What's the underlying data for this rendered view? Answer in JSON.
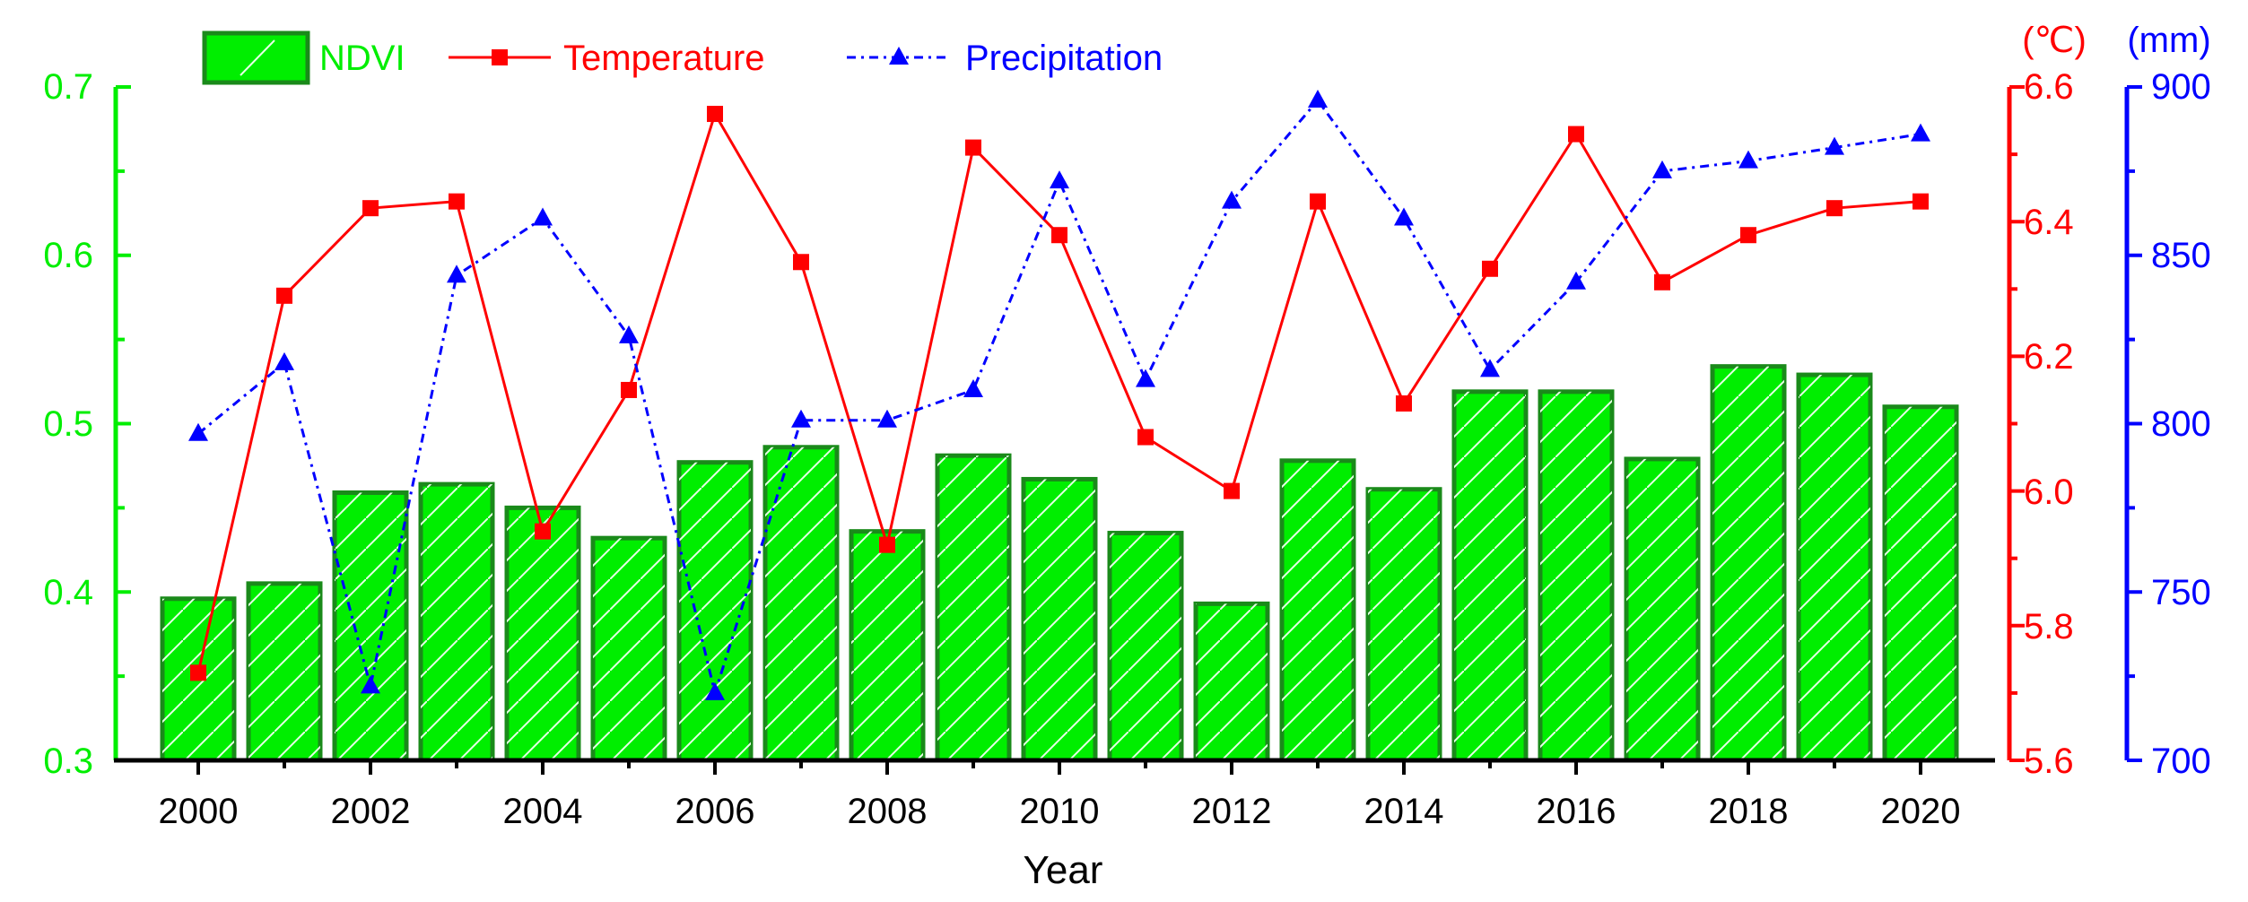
{
  "chart_data": {
    "type": "bar",
    "xlabel": "Year",
    "x": [
      2000,
      2001,
      2002,
      2003,
      2004,
      2005,
      2006,
      2007,
      2008,
      2009,
      2010,
      2011,
      2012,
      2013,
      2014,
      2015,
      2016,
      2017,
      2018,
      2019,
      2020
    ],
    "x_tick_labels": [
      "2000",
      "2002",
      "2004",
      "2006",
      "2008",
      "2010",
      "2012",
      "2014",
      "2016",
      "2018",
      "2020"
    ],
    "series": [
      {
        "name": "NDVI",
        "type": "bar",
        "axis": "left",
        "color": "#00ee00",
        "edge_color": "#1a8a1a",
        "values": [
          0.396,
          0.405,
          0.459,
          0.464,
          0.45,
          0.432,
          0.477,
          0.486,
          0.436,
          0.481,
          0.467,
          0.435,
          0.393,
          0.478,
          0.461,
          0.519,
          0.519,
          0.479,
          0.534,
          0.529,
          0.51
        ]
      },
      {
        "name": "Temperature",
        "type": "line",
        "axis": "right1",
        "color": "#ff0000",
        "marker": "square",
        "values": [
          5.73,
          6.29,
          6.42,
          6.43,
          5.94,
          6.15,
          6.56,
          6.34,
          5.92,
          6.51,
          6.38,
          6.08,
          6.0,
          6.43,
          6.13,
          6.33,
          6.53,
          6.31,
          6.38,
          6.42,
          6.43
        ]
      },
      {
        "name": "Precipitation",
        "type": "line",
        "axis": "right2",
        "color": "#0000ff",
        "marker": "triangle",
        "values": [
          797,
          818,
          722,
          844,
          861,
          826,
          720,
          801,
          801,
          810,
          872,
          813,
          866,
          896,
          861,
          816,
          842,
          875,
          878,
          882,
          886
        ]
      }
    ],
    "axes": {
      "left": {
        "ylim": [
          0.3,
          0.7
        ],
        "ticks": [
          "0.3",
          "0.4",
          "0.5",
          "0.6",
          "0.7"
        ],
        "color": "#00ee00"
      },
      "right1": {
        "ylim": [
          5.6,
          6.6
        ],
        "ticks": [
          "5.6",
          "5.8",
          "6.0",
          "6.2",
          "6.4",
          "6.6"
        ],
        "unit": "(℃)",
        "color": "#ff0000"
      },
      "right2": {
        "ylim": [
          700,
          900
        ],
        "ticks": [
          "700",
          "750",
          "800",
          "850",
          "900"
        ],
        "unit": "(mm)",
        "color": "#0000ff"
      }
    },
    "legend": {
      "placement": "top-left",
      "entries": [
        "NDVI",
        "Temperature",
        "Precipitation"
      ]
    }
  }
}
